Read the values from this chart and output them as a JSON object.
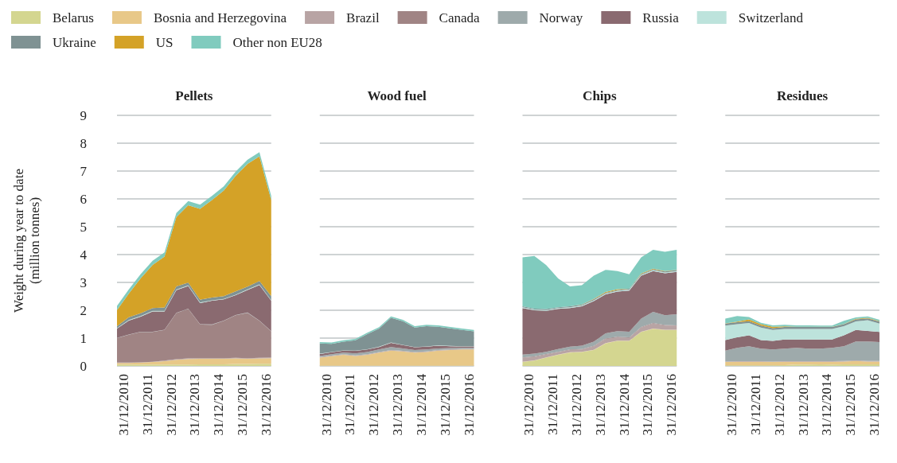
{
  "chart_data": [
    {
      "type": "area",
      "stacked": true,
      "title": "Pellets",
      "ylabel": "Weight during year to date (million tonnes)",
      "legend": "top",
      "grid": "y",
      "tick_labels": "xy",
      "x": [
        "2010-10-01",
        "2011-04-01",
        "2011-10-01",
        "2012-04-01",
        "2012-10-01",
        "2013-04-01",
        "2013-10-01",
        "2014-04-01",
        "2014-10-01",
        "2015-04-01",
        "2015-10-01",
        "2016-04-01",
        "2016-10-01",
        "2017-03-31"
      ],
      "xlim": [
        "2010-10-01",
        "2017-03-31"
      ],
      "xticks": [
        {
          "value": "2010-12-31",
          "label": "31/12/2010"
        },
        {
          "value": "2011-12-31",
          "label": "31/12/2011"
        },
        {
          "value": "2012-12-31",
          "label": "31/12/2012"
        },
        {
          "value": "2013-12-31",
          "label": "31/12/2013"
        },
        {
          "value": "2014-12-31",
          "label": "31/12/2014"
        },
        {
          "value": "2015-12-31",
          "label": "31/12/2015"
        },
        {
          "value": "2016-12-31",
          "label": "31/12/2016"
        }
      ],
      "ylim": [
        0,
        9
      ],
      "yticks": [
        0,
        1,
        2,
        3,
        4,
        5,
        6,
        7,
        8,
        9
      ],
      "series": [
        {
          "name": "Belarus",
          "color": "#d4d690",
          "values": [
            0.05,
            0.05,
            0.05,
            0.05,
            0.05,
            0.05,
            0.05,
            0.06,
            0.06,
            0.06,
            0.07,
            0.07,
            0.08,
            0.08
          ]
        },
        {
          "name": "Bosnia and Herzegovina",
          "color": "#e8c888",
          "values": [
            0.06,
            0.06,
            0.07,
            0.09,
            0.12,
            0.17,
            0.2,
            0.2,
            0.2,
            0.2,
            0.2,
            0.19,
            0.19,
            0.2
          ]
        },
        {
          "name": "Brazil",
          "color": "#b8a4a4",
          "values": [
            0.01,
            0.01,
            0.01,
            0.01,
            0.02,
            0.02,
            0.02,
            0.02,
            0.02,
            0.02,
            0.02,
            0.02,
            0.02,
            0.02
          ]
        },
        {
          "name": "Canada",
          "color": "#a08484",
          "values": [
            0.88,
            1.0,
            1.09,
            1.07,
            1.1,
            1.66,
            1.78,
            1.21,
            1.2,
            1.34,
            1.53,
            1.63,
            1.33,
            0.94
          ]
        },
        {
          "name": "Norway",
          "color": "#9eaaab",
          "values": [
            0.01,
            0.01,
            0.01,
            0.01,
            0.01,
            0.01,
            0.01,
            0.01,
            0.01,
            0.01,
            0.01,
            0.01,
            0.01,
            0.01
          ]
        },
        {
          "name": "Russia",
          "color": "#8a6a70",
          "values": [
            0.33,
            0.5,
            0.54,
            0.73,
            0.66,
            0.81,
            0.81,
            0.76,
            0.85,
            0.76,
            0.71,
            0.81,
            1.28,
            1.09
          ]
        },
        {
          "name": "Switzerland",
          "color": "#bde3dc",
          "values": [
            0.02,
            0.02,
            0.02,
            0.02,
            0.02,
            0.02,
            0.02,
            0.02,
            0.02,
            0.02,
            0.02,
            0.02,
            0.02,
            0.02
          ]
        },
        {
          "name": "Ukraine",
          "color": "#7f9293",
          "values": [
            0.07,
            0.1,
            0.1,
            0.1,
            0.12,
            0.12,
            0.1,
            0.1,
            0.1,
            0.1,
            0.12,
            0.1,
            0.12,
            0.15
          ]
        },
        {
          "name": "US",
          "color": "#d4a227",
          "values": [
            0.58,
            0.85,
            1.26,
            1.55,
            1.83,
            2.48,
            2.78,
            3.26,
            3.5,
            3.79,
            4.15,
            4.41,
            4.48,
            3.45
          ]
        },
        {
          "name": "Other non EU28",
          "color": "#80cbbe",
          "values": [
            0.15,
            0.15,
            0.15,
            0.15,
            0.15,
            0.15,
            0.15,
            0.15,
            0.15,
            0.15,
            0.15,
            0.15,
            0.15,
            0.15
          ]
        }
      ]
    },
    {
      "type": "area",
      "stacked": true,
      "title": "Wood fuel",
      "grid": "y",
      "tick_labels": "x",
      "x": [
        "2010-10-01",
        "2011-04-01",
        "2011-10-01",
        "2012-04-01",
        "2012-10-01",
        "2013-04-01",
        "2013-10-01",
        "2014-04-01",
        "2014-10-01",
        "2015-04-01",
        "2015-10-01",
        "2016-04-01",
        "2016-10-01",
        "2017-03-31"
      ],
      "xlim": [
        "2010-10-01",
        "2017-03-31"
      ],
      "xticks": [
        {
          "value": "2010-12-31",
          "label": "31/12/2010"
        },
        {
          "value": "2011-12-31",
          "label": "31/12/2011"
        },
        {
          "value": "2012-12-31",
          "label": "31/12/2012"
        },
        {
          "value": "2013-12-31",
          "label": "31/12/2013"
        },
        {
          "value": "2014-12-31",
          "label": "31/12/2014"
        },
        {
          "value": "2015-12-31",
          "label": "31/12/2015"
        },
        {
          "value": "2016-12-31",
          "label": "31/12/2016"
        }
      ],
      "ylim": [
        0,
        9
      ],
      "yticks": [
        0,
        1,
        2,
        3,
        4,
        5,
        6,
        7,
        8,
        9
      ],
      "series": [
        {
          "color": "#d4d690",
          "values": [
            0.01,
            0.01,
            0.01,
            0.01,
            0.01,
            0.01,
            0.01,
            0.01,
            0.01,
            0.01,
            0.01,
            0.01,
            0.01,
            0.01
          ]
        },
        {
          "color": "#e8c888",
          "values": [
            0.29,
            0.34,
            0.39,
            0.35,
            0.39,
            0.47,
            0.54,
            0.51,
            0.47,
            0.49,
            0.54,
            0.56,
            0.58,
            0.58
          ]
        },
        {
          "color": "#b8a4a4",
          "values": [
            0.02,
            0.02,
            0.02,
            0.02,
            0.02,
            0.02,
            0.02,
            0.02,
            0.02,
            0.02,
            0.02,
            0.02,
            0.02,
            0.02
          ]
        },
        {
          "color": "#9eaaab",
          "values": [
            0.04,
            0.05,
            0.06,
            0.07,
            0.08,
            0.09,
            0.11,
            0.09,
            0.07,
            0.07,
            0.06,
            0.05,
            0.04,
            0.04
          ]
        },
        {
          "color": "#8a6a70",
          "values": [
            0.07,
            0.07,
            0.07,
            0.09,
            0.09,
            0.09,
            0.15,
            0.12,
            0.1,
            0.1,
            0.1,
            0.07,
            0.05,
            0.05
          ]
        },
        {
          "color": "#bde3dc",
          "values": [
            0.01,
            0.01,
            0.01,
            0.01,
            0.01,
            0.01,
            0.01,
            0.01,
            0.01,
            0.01,
            0.01,
            0.01,
            0.01,
            0.01
          ]
        },
        {
          "color": "#7f9293",
          "values": [
            0.37,
            0.29,
            0.31,
            0.37,
            0.54,
            0.65,
            0.89,
            0.85,
            0.7,
            0.73,
            0.67,
            0.63,
            0.58,
            0.53
          ]
        },
        {
          "color": "#80cbbe",
          "values": [
            0.05,
            0.05,
            0.05,
            0.05,
            0.05,
            0.05,
            0.05,
            0.05,
            0.05,
            0.05,
            0.05,
            0.05,
            0.05,
            0.05
          ]
        }
      ]
    },
    {
      "type": "area",
      "stacked": true,
      "title": "Chips",
      "grid": "y",
      "tick_labels": "x",
      "x": [
        "2010-10-01",
        "2011-04-01",
        "2011-10-01",
        "2012-04-01",
        "2012-10-01",
        "2013-04-01",
        "2013-10-01",
        "2014-04-01",
        "2014-10-01",
        "2015-04-01",
        "2015-10-01",
        "2016-04-01",
        "2016-10-01",
        "2017-03-31"
      ],
      "xlim": [
        "2010-10-01",
        "2017-03-31"
      ],
      "xticks": [
        {
          "value": "2010-12-31",
          "label": "31/12/2010"
        },
        {
          "value": "2011-12-31",
          "label": "31/12/2011"
        },
        {
          "value": "2012-12-31",
          "label": "31/12/2012"
        },
        {
          "value": "2013-12-31",
          "label": "31/12/2013"
        },
        {
          "value": "2014-12-31",
          "label": "31/12/2014"
        },
        {
          "value": "2015-12-31",
          "label": "31/12/2015"
        },
        {
          "value": "2016-12-31",
          "label": "31/12/2016"
        }
      ],
      "ylim": [
        0,
        9
      ],
      "yticks": [
        0,
        1,
        2,
        3,
        4,
        5,
        6,
        7,
        8,
        9
      ],
      "series": [
        {
          "color": "#d4d690",
          "values": [
            0.14,
            0.19,
            0.3,
            0.4,
            0.48,
            0.5,
            0.57,
            0.81,
            0.9,
            0.9,
            1.22,
            1.33,
            1.29,
            1.29
          ]
        },
        {
          "color": "#e8c888",
          "values": [
            0.01,
            0.01,
            0.01,
            0.01,
            0.01,
            0.01,
            0.01,
            0.01,
            0.01,
            0.01,
            0.01,
            0.01,
            0.01,
            0.01
          ]
        },
        {
          "color": "#b8a4a4",
          "values": [
            0.14,
            0.12,
            0.1,
            0.08,
            0.08,
            0.08,
            0.12,
            0.15,
            0.12,
            0.1,
            0.15,
            0.18,
            0.15,
            0.14
          ]
        },
        {
          "color": "#a08484",
          "values": [
            0.02,
            0.02,
            0.02,
            0.02,
            0.02,
            0.02,
            0.02,
            0.02,
            0.02,
            0.02,
            0.02,
            0.02,
            0.02,
            0.02
          ]
        },
        {
          "color": "#9eaaab",
          "values": [
            0.1,
            0.1,
            0.08,
            0.1,
            0.1,
            0.12,
            0.15,
            0.18,
            0.2,
            0.2,
            0.3,
            0.4,
            0.35,
            0.4
          ]
        },
        {
          "color": "#8a6a70",
          "values": [
            1.67,
            1.56,
            1.47,
            1.44,
            1.39,
            1.41,
            1.46,
            1.4,
            1.42,
            1.48,
            1.54,
            1.47,
            1.51,
            1.52
          ]
        },
        {
          "color": "#bde3dc",
          "values": [
            0.03,
            0.03,
            0.03,
            0.03,
            0.03,
            0.03,
            0.03,
            0.03,
            0.03,
            0.03,
            0.03,
            0.03,
            0.03,
            0.03
          ]
        },
        {
          "color": "#7f9293",
          "values": [
            0.03,
            0.03,
            0.03,
            0.03,
            0.03,
            0.03,
            0.03,
            0.03,
            0.03,
            0.03,
            0.03,
            0.03,
            0.03,
            0.03
          ]
        },
        {
          "color": "#d4a227",
          "values": [
            0,
            0,
            0,
            0,
            0,
            0.01,
            0.02,
            0.03,
            0.03,
            0,
            0.02,
            0.02,
            0.02,
            0.01
          ]
        },
        {
          "color": "#80cbbe",
          "values": [
            1.76,
            1.89,
            1.58,
            1.03,
            0.72,
            0.69,
            0.83,
            0.79,
            0.65,
            0.52,
            0.58,
            0.68,
            0.69,
            0.72
          ]
        }
      ]
    },
    {
      "type": "area",
      "stacked": true,
      "title": "Residues",
      "grid": "y",
      "tick_labels": "x",
      "x": [
        "2010-10-01",
        "2011-04-01",
        "2011-10-01",
        "2012-04-01",
        "2012-10-01",
        "2013-04-01",
        "2013-10-01",
        "2014-04-01",
        "2014-10-01",
        "2015-04-01",
        "2015-10-01",
        "2016-04-01",
        "2016-10-01",
        "2017-03-31"
      ],
      "xlim": [
        "2010-10-01",
        "2017-03-31"
      ],
      "xticks": [
        {
          "value": "2010-12-31",
          "label": "31/12/2010"
        },
        {
          "value": "2011-12-31",
          "label": "31/12/2011"
        },
        {
          "value": "2012-12-31",
          "label": "31/12/2012"
        },
        {
          "value": "2013-12-31",
          "label": "31/12/2013"
        },
        {
          "value": "2014-12-31",
          "label": "31/12/2014"
        },
        {
          "value": "2015-12-31",
          "label": "31/12/2015"
        },
        {
          "value": "2016-12-31",
          "label": "31/12/2016"
        }
      ],
      "ylim": [
        0,
        9
      ],
      "yticks": [
        0,
        1,
        2,
        3,
        4,
        5,
        6,
        7,
        8,
        9
      ],
      "series": [
        {
          "color": "#d4d690",
          "values": [
            0.02,
            0.02,
            0.02,
            0.02,
            0.02,
            0.03,
            0.05,
            0.05,
            0.06,
            0.05,
            0.06,
            0.06,
            0.06,
            0.06
          ]
        },
        {
          "color": "#e8c888",
          "values": [
            0.12,
            0.13,
            0.13,
            0.13,
            0.12,
            0.12,
            0.1,
            0.1,
            0.09,
            0.1,
            0.1,
            0.12,
            0.1,
            0.1
          ]
        },
        {
          "color": "#b8a4a4",
          "values": [
            0.02,
            0.02,
            0.02,
            0.02,
            0.02,
            0.02,
            0.02,
            0.02,
            0.02,
            0.02,
            0.02,
            0.02,
            0.02,
            0.02
          ]
        },
        {
          "color": "#9eaaab",
          "values": [
            0.39,
            0.48,
            0.54,
            0.45,
            0.43,
            0.45,
            0.48,
            0.45,
            0.45,
            0.48,
            0.53,
            0.68,
            0.7,
            0.68
          ]
        },
        {
          "color": "#8a6a70",
          "values": [
            0.38,
            0.38,
            0.39,
            0.31,
            0.31,
            0.33,
            0.3,
            0.33,
            0.33,
            0.3,
            0.39,
            0.41,
            0.38,
            0.36
          ]
        },
        {
          "color": "#bde3dc",
          "values": [
            0.52,
            0.47,
            0.44,
            0.45,
            0.39,
            0.38,
            0.38,
            0.38,
            0.38,
            0.38,
            0.33,
            0.31,
            0.38,
            0.3
          ]
        },
        {
          "color": "#7f9293",
          "values": [
            0.07,
            0.07,
            0.07,
            0.07,
            0.07,
            0.07,
            0.07,
            0.07,
            0.07,
            0.07,
            0.07,
            0.07,
            0.07,
            0.07
          ]
        },
        {
          "color": "#d4a227",
          "values": [
            0.01,
            0.02,
            0.06,
            0.05,
            0.05,
            0.02,
            0.01,
            0.01,
            0.01,
            0.01,
            0.01,
            0.02,
            0.02,
            0.02
          ]
        },
        {
          "color": "#80cbbe",
          "values": [
            0.17,
            0.2,
            0.09,
            0.05,
            0.05,
            0.06,
            0.05,
            0.05,
            0.04,
            0.04,
            0.11,
            0.05,
            0.05,
            0.05
          ]
        }
      ]
    }
  ]
}
